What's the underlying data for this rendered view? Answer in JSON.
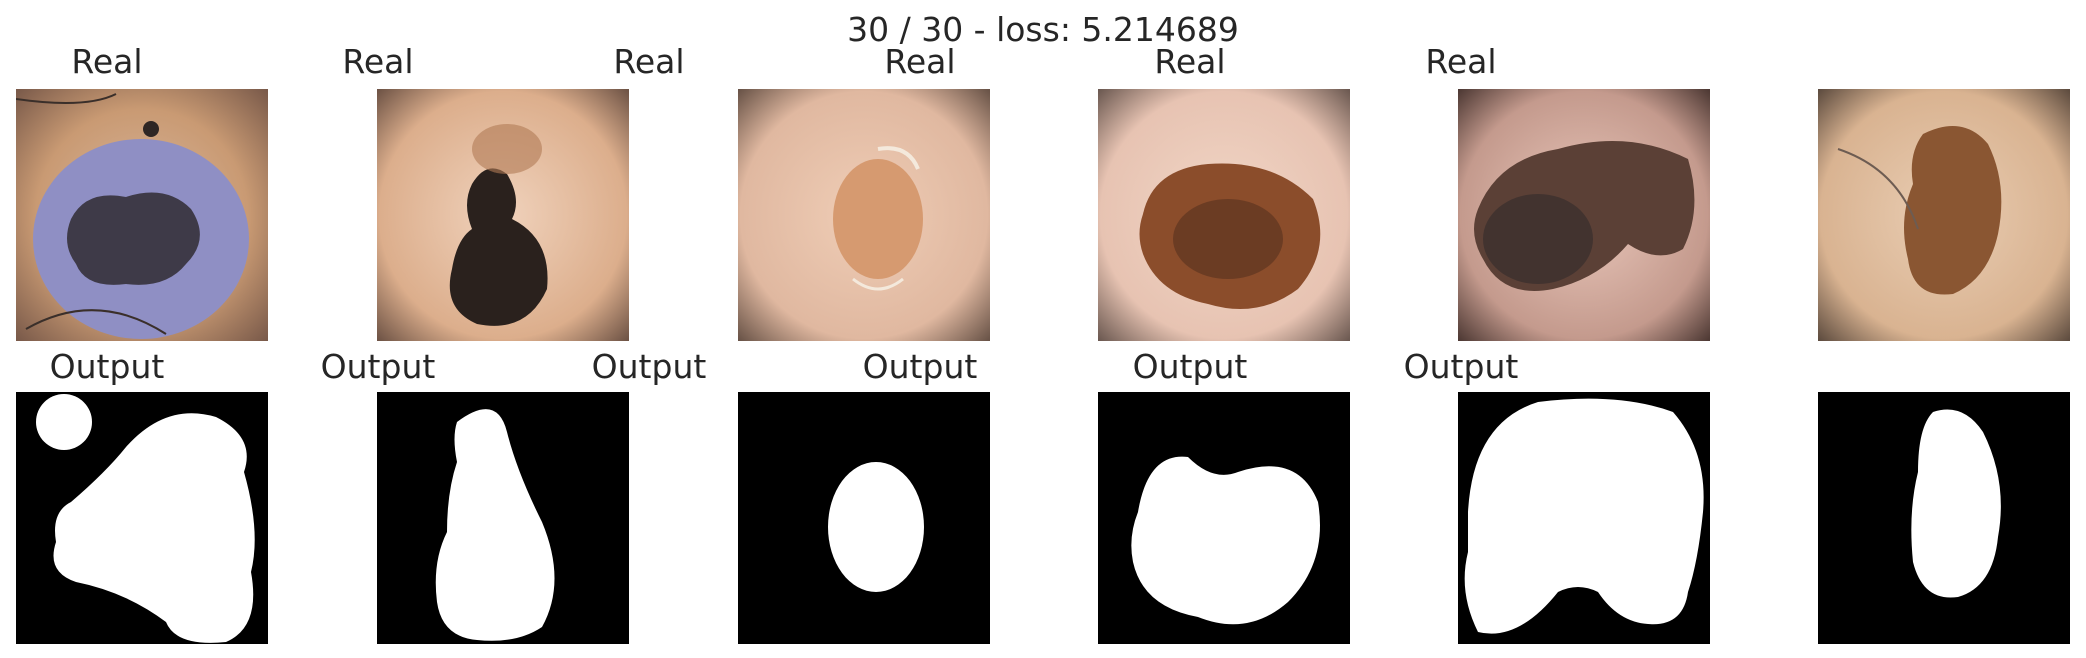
{
  "suptitle": "30 / 30 - loss: 5.214689",
  "real_title": "Real",
  "output_title": "Output",
  "panels": [
    {
      "real": "dermoscopy-lesion-1",
      "output": "mask-1"
    },
    {
      "real": "dermoscopy-lesion-2",
      "output": "mask-2"
    },
    {
      "real": "dermoscopy-lesion-3",
      "output": "mask-3"
    },
    {
      "real": "dermoscopy-lesion-4",
      "output": "mask-4"
    },
    {
      "real": "dermoscopy-lesion-5",
      "output": "mask-5"
    },
    {
      "real": "dermoscopy-lesion-6",
      "output": "mask-6"
    }
  ]
}
